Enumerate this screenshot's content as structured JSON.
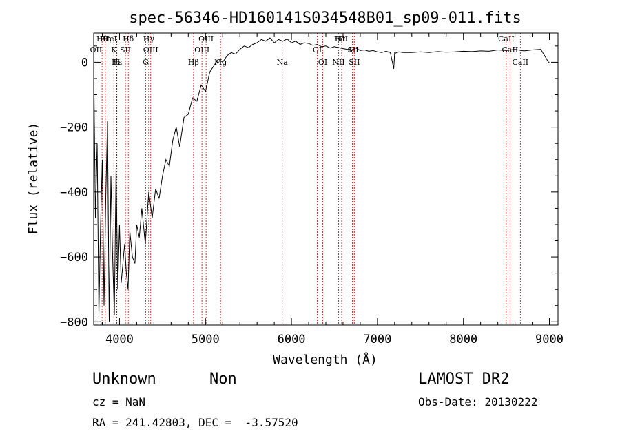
{
  "chart_data": {
    "type": "line",
    "title": "spec-56346-HD160141S034548B01_sp09-011.fits",
    "xlabel": "Wavelength (Å)",
    "ylabel": "Flux (relative)",
    "xlim": [
      3700,
      9100
    ],
    "ylim": [
      -810,
      90
    ],
    "xticks": [
      4000,
      5000,
      6000,
      7000,
      8000,
      9000
    ],
    "yticks": [
      0,
      -200,
      -400,
      -600,
      -800
    ],
    "line_color": "#000000",
    "marker_color": "#cc0000",
    "series": [
      {
        "x": [
          3700,
          3720,
          3740,
          3760,
          3780,
          3800,
          3820,
          3840,
          3860,
          3880,
          3900,
          3920,
          3940,
          3960,
          3980,
          4000,
          4020,
          4040,
          4060,
          4080,
          4100,
          4120,
          4150,
          4180,
          4200,
          4230,
          4260,
          4300,
          4340,
          4380,
          4420,
          4460,
          4500,
          4540,
          4580,
          4620,
          4660,
          4700,
          4750,
          4800,
          4850,
          4900,
          4950,
          5000,
          5050,
          5100,
          5150,
          5200,
          5250,
          5300,
          5350,
          5400,
          5450,
          5500,
          5550,
          5600,
          5650,
          5700,
          5750,
          5800,
          5850,
          5900,
          5950,
          6000,
          6050,
          6100,
          6150,
          6200,
          6250,
          6300,
          6350,
          6400,
          6450,
          6500,
          6550,
          6600,
          6650,
          6700,
          6750,
          6800,
          6850,
          6900,
          6950,
          7000,
          7050,
          7100,
          7150,
          7190,
          7200,
          7210,
          7250,
          7300,
          7400,
          7500,
          7600,
          7700,
          7800,
          7900,
          8000,
          8100,
          8200,
          8300,
          8400,
          8500,
          8600,
          8700,
          8800,
          8900,
          8990,
          9000
        ],
        "values": [
          0,
          -480,
          -250,
          -780,
          -500,
          -300,
          -750,
          -420,
          -180,
          -800,
          -350,
          -600,
          -780,
          -320,
          -700,
          -500,
          -680,
          -620,
          -560,
          -650,
          -700,
          -520,
          -600,
          -620,
          -500,
          -540,
          -450,
          -560,
          -400,
          -480,
          -390,
          -420,
          -350,
          -300,
          -320,
          -240,
          -200,
          -260,
          -170,
          -160,
          -110,
          -120,
          -70,
          -90,
          -30,
          -10,
          10,
          0,
          20,
          30,
          25,
          40,
          50,
          45,
          55,
          60,
          70,
          65,
          75,
          60,
          70,
          65,
          72,
          60,
          65,
          55,
          60,
          58,
          52,
          55,
          48,
          50,
          44,
          48,
          45,
          42,
          40,
          38,
          44,
          36,
          38,
          34,
          36,
          32,
          30,
          34,
          30,
          -20,
          30,
          28,
          32,
          30,
          30,
          32,
          30,
          33,
          31,
          32,
          34,
          33,
          35,
          34,
          38,
          36,
          40,
          35,
          38,
          40,
          0,
          0
        ]
      }
    ],
    "lines_top": [
      {
        "label": "Hθ",
        "x": 3797
      },
      {
        "label": "OII",
        "x": 3727
      },
      {
        "label": "Hη",
        "x": 3835
      },
      {
        "label": "K",
        "x": 3934
      },
      {
        "label": "HeI",
        "x": 3889
      },
      {
        "label": "SII",
        "x": 4069
      },
      {
        "label": "Hδ",
        "x": 4102
      },
      {
        "label": "OIII",
        "x": 4363
      },
      {
        "label": "Hγ",
        "x": 4340
      },
      {
        "label": "OIII",
        "x": 4959
      },
      {
        "label": "OIII",
        "x": 5007
      },
      {
        "label": "OI",
        "x": 6300
      },
      {
        "label": "Hα",
        "x": 6563
      },
      {
        "label": "SII",
        "x": 6716
      },
      {
        "label": "NII",
        "x": 6584
      },
      {
        "label": "Li",
        "x": 6708
      },
      {
        "label": "CaII",
        "x": 8498
      },
      {
        "label": "CaII",
        "x": 8542
      }
    ],
    "lines_bottom": [
      {
        "label": "Hε",
        "x": 3970
      },
      {
        "label": "H",
        "x": 3968
      },
      {
        "label": "G",
        "x": 4304
      },
      {
        "label": "Hβ",
        "x": 4861
      },
      {
        "label": "Mg",
        "x": 5175
      },
      {
        "label": "Na",
        "x": 5893
      },
      {
        "label": "OI",
        "x": 6364
      },
      {
        "label": "NII",
        "x": 6548
      },
      {
        "label": "SII",
        "x": 6731
      },
      {
        "label": "CaII",
        "x": 8662
      }
    ]
  },
  "info": {
    "class": "Unknown",
    "subclass": "Non",
    "survey": "LAMOST DR2",
    "cz": "cz = NaN",
    "obs_date": "Obs-Date: 20130222",
    "coords": "RA = 241.42803, DEC =  -3.57520"
  }
}
